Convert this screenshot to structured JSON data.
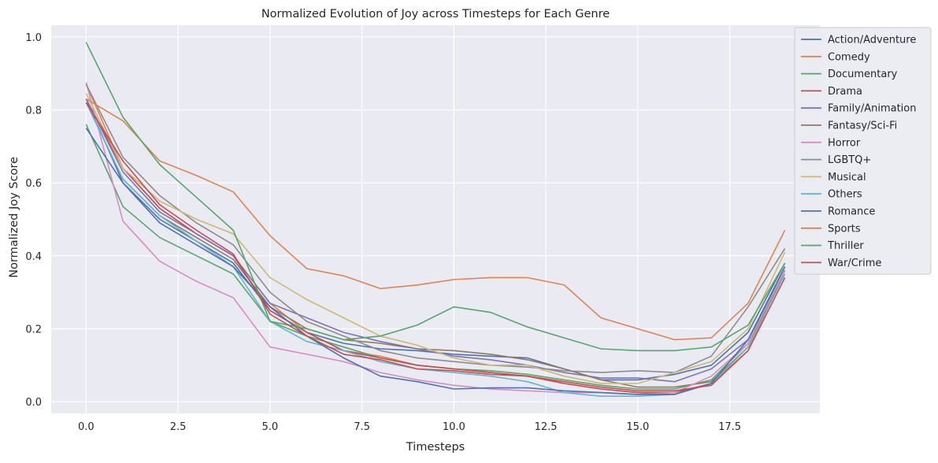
{
  "chart_data": {
    "type": "line",
    "title": "Normalized Evolution of Joy across Timesteps for Each Genre",
    "xlabel": "Timesteps",
    "ylabel": "Normalized Joy Score",
    "xlim": [
      -0.95,
      19.95
    ],
    "ylim": [
      -0.032,
      1.032
    ],
    "xticks": [
      0.0,
      2.5,
      5.0,
      7.5,
      10.0,
      12.5,
      15.0,
      17.5
    ],
    "xtick_labels": [
      "0.0",
      "2.5",
      "5.0",
      "7.5",
      "10.0",
      "12.5",
      "15.0",
      "17.5"
    ],
    "yticks": [
      0.0,
      0.2,
      0.4,
      0.6,
      0.8,
      1.0
    ],
    "ytick_labels": [
      "0.0",
      "0.2",
      "0.4",
      "0.6",
      "0.8",
      "1.0"
    ],
    "grid": true,
    "legend_position": "top-right",
    "background": "#eaeaf2",
    "x": [
      0,
      1,
      2,
      3,
      4,
      5,
      6,
      7,
      8,
      9,
      10,
      11,
      12,
      13,
      14,
      15,
      16,
      17,
      18,
      19
    ],
    "series": [
      {
        "name": "Action/Adventure",
        "color": "#4c72b0",
        "values": [
          0.83,
          0.6,
          0.5,
          0.44,
          0.38,
          0.25,
          0.19,
          0.16,
          0.145,
          0.14,
          0.13,
          0.125,
          0.12,
          0.09,
          0.06,
          0.06,
          0.075,
          0.1,
          0.19,
          0.38
        ]
      },
      {
        "name": "Comedy",
        "color": "#dd8452",
        "values": [
          0.87,
          0.64,
          0.53,
          0.46,
          0.4,
          0.27,
          0.19,
          0.14,
          0.125,
          0.1,
          0.09,
          0.08,
          0.07,
          0.05,
          0.035,
          0.025,
          0.02,
          0.05,
          0.14,
          0.36
        ]
      },
      {
        "name": "Documentary",
        "color": "#55a868",
        "values": [
          0.76,
          0.535,
          0.45,
          0.4,
          0.35,
          0.22,
          0.18,
          0.15,
          0.12,
          0.1,
          0.09,
          0.085,
          0.075,
          0.06,
          0.045,
          0.035,
          0.035,
          0.06,
          0.16,
          0.37
        ]
      },
      {
        "name": "Drama",
        "color": "#c44e52",
        "values": [
          0.83,
          0.64,
          0.53,
          0.46,
          0.4,
          0.25,
          0.19,
          0.14,
          0.12,
          0.1,
          0.09,
          0.08,
          0.07,
          0.05,
          0.035,
          0.025,
          0.025,
          0.05,
          0.15,
          0.36
        ]
      },
      {
        "name": "Family/Animation",
        "color": "#8172b3",
        "values": [
          0.83,
          0.63,
          0.52,
          0.46,
          0.4,
          0.27,
          0.23,
          0.19,
          0.165,
          0.145,
          0.125,
          0.115,
          0.1,
          0.08,
          0.065,
          0.065,
          0.055,
          0.09,
          0.17,
          0.37
        ]
      },
      {
        "name": "Fantasy/Sci-Fi",
        "color": "#937860",
        "values": [
          0.82,
          0.61,
          0.51,
          0.45,
          0.39,
          0.26,
          0.2,
          0.17,
          0.16,
          0.145,
          0.14,
          0.13,
          0.115,
          0.09,
          0.06,
          0.04,
          0.04,
          0.055,
          0.15,
          0.36
        ]
      },
      {
        "name": "Horror",
        "color": "#da8bc3",
        "values": [
          0.875,
          0.495,
          0.385,
          0.33,
          0.285,
          0.15,
          0.13,
          0.11,
          0.08,
          0.06,
          0.045,
          0.035,
          0.03,
          0.025,
          0.025,
          0.02,
          0.025,
          0.07,
          0.16,
          0.36
        ]
      },
      {
        "name": "LGBTQ+",
        "color": "#8c8c8c",
        "values": [
          0.87,
          0.67,
          0.565,
          0.49,
          0.43,
          0.3,
          0.22,
          0.18,
          0.14,
          0.12,
          0.11,
          0.1,
          0.095,
          0.085,
          0.08,
          0.085,
          0.08,
          0.125,
          0.26,
          0.42
        ]
      },
      {
        "name": "Musical",
        "color": "#ccb974",
        "values": [
          0.845,
          0.64,
          0.55,
          0.5,
          0.46,
          0.34,
          0.28,
          0.23,
          0.18,
          0.155,
          0.12,
          0.1,
          0.1,
          0.07,
          0.05,
          0.05,
          0.08,
          0.11,
          0.2,
          0.41
        ]
      },
      {
        "name": "Others",
        "color": "#64b5cd",
        "values": [
          0.82,
          0.61,
          0.51,
          0.44,
          0.37,
          0.22,
          0.165,
          0.14,
          0.11,
          0.09,
          0.08,
          0.07,
          0.055,
          0.025,
          0.015,
          0.015,
          0.02,
          0.05,
          0.15,
          0.35
        ]
      },
      {
        "name": "Romance",
        "color": "#4c72b0",
        "values": [
          0.75,
          0.6,
          0.49,
          0.43,
          0.37,
          0.26,
          0.18,
          0.12,
          0.07,
          0.055,
          0.035,
          0.038,
          0.038,
          0.03,
          0.025,
          0.02,
          0.02,
          0.05,
          0.17,
          0.37
        ]
      },
      {
        "name": "Sports",
        "color": "#dd8452",
        "values": [
          0.83,
          0.77,
          0.66,
          0.62,
          0.575,
          0.455,
          0.365,
          0.345,
          0.31,
          0.32,
          0.335,
          0.34,
          0.34,
          0.32,
          0.23,
          0.2,
          0.17,
          0.175,
          0.27,
          0.47
        ]
      },
      {
        "name": "Thriller",
        "color": "#55a868",
        "values": [
          0.985,
          0.78,
          0.65,
          0.56,
          0.47,
          0.22,
          0.2,
          0.17,
          0.18,
          0.21,
          0.26,
          0.245,
          0.205,
          0.175,
          0.145,
          0.14,
          0.14,
          0.15,
          0.21,
          0.38
        ]
      },
      {
        "name": "War/Crime",
        "color": "#c44e52",
        "values": [
          0.82,
          0.66,
          0.54,
          0.47,
          0.405,
          0.24,
          0.18,
          0.13,
          0.115,
          0.09,
          0.085,
          0.075,
          0.07,
          0.055,
          0.04,
          0.03,
          0.03,
          0.045,
          0.14,
          0.34
        ]
      }
    ]
  }
}
